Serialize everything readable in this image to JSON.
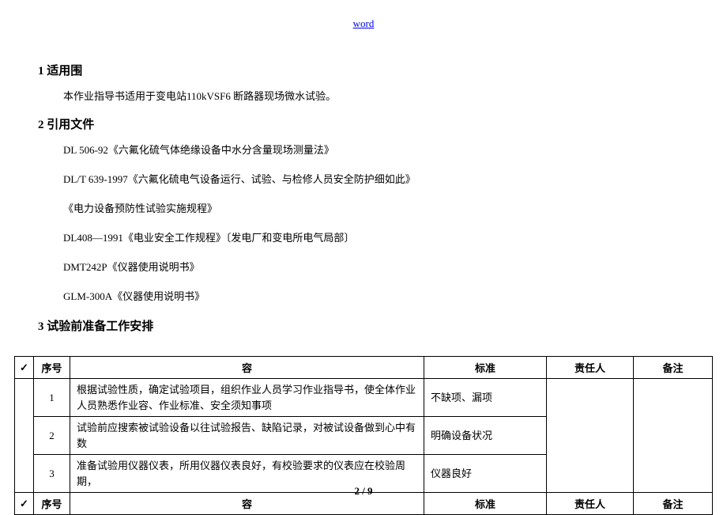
{
  "header": {
    "link": "word"
  },
  "section1": {
    "title": "1  适用围",
    "body": "本作业指导书适用于变电站110kVSF6 断路器现场微水试验。"
  },
  "section2": {
    "title": "2  引用文件",
    "refs": [
      "DL 506-92《六氟化硫气体绝缘设备中水分含量现场测量法》",
      "DL/T 639-1997《六氟化硫电气设备运行、试验、与检修人员安全防护细如此》",
      "《电力设备预防性试验实施规程》",
      "DL408—1991《电业安全工作规程》〔发电厂和变电所电气局部〕",
      "DMT242P《仪器使用说明书》",
      "GLM-300A《仪器使用说明书》"
    ]
  },
  "section3": {
    "title": "3  试验前准备工作安排"
  },
  "table": {
    "header": {
      "check": "✓",
      "seq": "序号",
      "content": "容",
      "std": "标准",
      "resp": "责任人",
      "note": "备注"
    },
    "rows": [
      {
        "seq": "1",
        "content": "根据试验性质，确定试验项目，组织作业人员学习作业指导书，使全体作业人员熟悉作业容、作业标准、安全须知事项",
        "std": "不缺项、漏项"
      },
      {
        "seq": "2",
        "content": "试验前应搜索被试验设备以往试验报告、缺陷记录，对被试设备做到心中有数",
        "std": "明确设备状况"
      },
      {
        "seq": "3",
        "content": "准备试验用仪器仪表，所用仪器仪表良好，有校验要求的仪表应在校验周期，",
        "std": "仪器良好"
      }
    ],
    "footer": {
      "check": "✓",
      "seq": "序号",
      "content": "容",
      "std": "标准",
      "resp": "责任人",
      "note": "备注"
    }
  },
  "pagefooter": "2 / 9"
}
